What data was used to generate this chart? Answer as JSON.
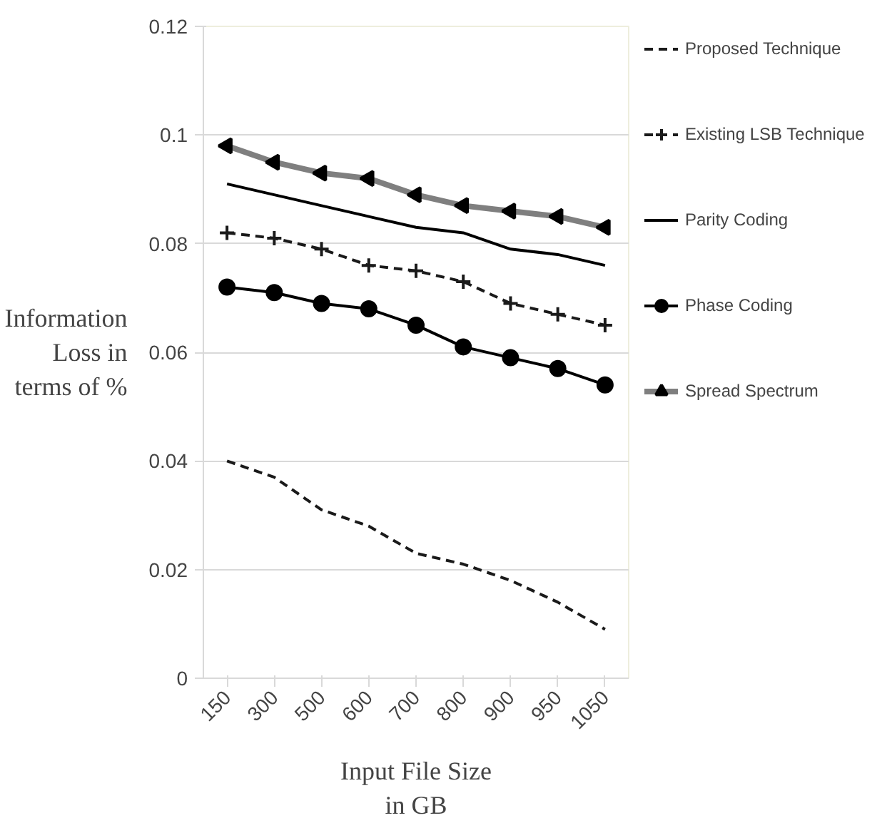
{
  "chart_data": {
    "type": "line",
    "xlabel": "Input File Size in GB",
    "ylabel": "Information Loss in terms of %",
    "categories": [
      "150",
      "300",
      "500",
      "600",
      "700",
      "800",
      "900",
      "950",
      "1050"
    ],
    "ylim": [
      0,
      0.12
    ],
    "yticks": [
      0,
      0.02,
      0.04,
      0.06,
      0.08,
      0.1,
      0.12
    ],
    "grid": "y",
    "legend": "right",
    "series": [
      {
        "name": "Proposed Technique",
        "color": "#1a1a1a",
        "line_style": "dashed",
        "marker": "none",
        "values": [
          0.04,
          0.037,
          0.031,
          0.028,
          0.023,
          0.021,
          0.018,
          0.014,
          0.009
        ]
      },
      {
        "name": "Existing LSB Technique",
        "color": "#1a1a1a",
        "line_style": "dashed",
        "marker": "cross",
        "values": [
          0.082,
          0.081,
          0.079,
          0.076,
          0.075,
          0.073,
          0.069,
          0.067,
          0.065
        ]
      },
      {
        "name": "Parity Coding",
        "color": "#000000",
        "line_style": "solid",
        "marker": "none",
        "values": [
          0.091,
          0.089,
          0.087,
          0.085,
          0.083,
          0.082,
          0.079,
          0.078,
          0.076
        ]
      },
      {
        "name": "Phase Coding",
        "color": "#000000",
        "line_style": "solid",
        "marker": "circle",
        "values": [
          0.072,
          0.071,
          0.069,
          0.068,
          0.065,
          0.061,
          0.059,
          0.057,
          0.054
        ]
      },
      {
        "name": "Spread Spectrum",
        "color": "#7f7f7f",
        "line_style": "solid",
        "marker": "triangle",
        "values": [
          0.098,
          0.095,
          0.093,
          0.092,
          0.089,
          0.087,
          0.086,
          0.085,
          0.083
        ]
      }
    ]
  }
}
